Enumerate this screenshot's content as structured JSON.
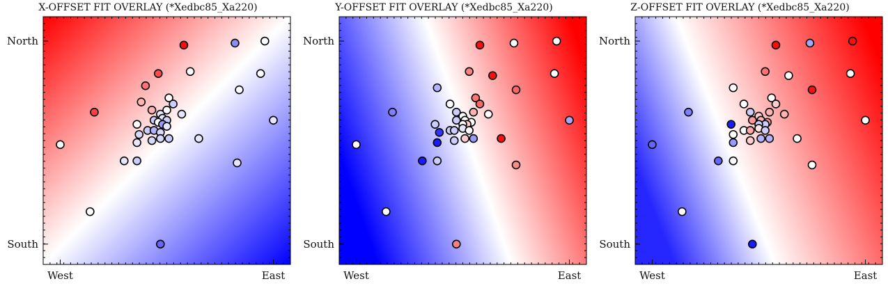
{
  "chart_data": [
    {
      "type": "scatter",
      "title": "X-OFFSET FIT OVERLAY (*Xedbc85_Xa220)",
      "xticks": [
        "West",
        "East"
      ],
      "yticks": [
        "North",
        "South"
      ],
      "xlim": [
        -0.08,
        1.08
      ],
      "ylim": [
        -0.1,
        1.12
      ],
      "background_gradient": {
        "hot_direction": "north-west",
        "cold_direction": "south-east",
        "neutral_line_slope": 0.7
      },
      "colors": {
        "positive": "#ff0000",
        "neutral": "#ffffff",
        "negative": "#0000ff"
      },
      "points": [
        {
          "x": 0.58,
          "y": 0.98,
          "v": 0.95
        },
        {
          "x": 0.82,
          "y": 0.99,
          "v": -0.45
        },
        {
          "x": 0.96,
          "y": 1.0,
          "v": 0.0
        },
        {
          "x": 0.61,
          "y": 0.85,
          "v": 0.0
        },
        {
          "x": 0.94,
          "y": 0.84,
          "v": 0.0
        },
        {
          "x": 0.46,
          "y": 0.84,
          "v": 0.7
        },
        {
          "x": 0.4,
          "y": 0.78,
          "v": 0.55
        },
        {
          "x": 0.84,
          "y": 0.76,
          "v": 0.0
        },
        {
          "x": 0.16,
          "y": 0.65,
          "v": 0.75
        },
        {
          "x": 0.51,
          "y": 0.72,
          "v": 0.0
        },
        {
          "x": 0.38,
          "y": 0.7,
          "v": 0.3
        },
        {
          "x": 0.53,
          "y": 0.69,
          "v": -0.2
        },
        {
          "x": 0.43,
          "y": 0.66,
          "v": 0.3
        },
        {
          "x": 0.47,
          "y": 0.64,
          "v": -0.1
        },
        {
          "x": 0.5,
          "y": 0.66,
          "v": 0.0
        },
        {
          "x": 0.57,
          "y": 0.64,
          "v": -0.1
        },
        {
          "x": 0.44,
          "y": 0.61,
          "v": -0.2
        },
        {
          "x": 0.48,
          "y": 0.62,
          "v": -0.1
        },
        {
          "x": 0.5,
          "y": 0.61,
          "v": -0.2
        },
        {
          "x": 0.46,
          "y": 0.6,
          "v": 0.0
        },
        {
          "x": 0.36,
          "y": 0.59,
          "v": 0.0
        },
        {
          "x": 0.48,
          "y": 0.59,
          "v": -0.4
        },
        {
          "x": 0.41,
          "y": 0.56,
          "v": -0.2
        },
        {
          "x": 0.44,
          "y": 0.56,
          "v": -0.3
        },
        {
          "x": 0.47,
          "y": 0.55,
          "v": -0.15
        },
        {
          "x": 0.37,
          "y": 0.54,
          "v": -0.15
        },
        {
          "x": 0.5,
          "y": 0.58,
          "v": -0.1
        },
        {
          "x": 0.43,
          "y": 0.51,
          "v": -0.15
        },
        {
          "x": 0.47,
          "y": 0.52,
          "v": -0.15
        },
        {
          "x": 0.51,
          "y": 0.52,
          "v": -0.2
        },
        {
          "x": 0.36,
          "y": 0.5,
          "v": -0.1
        },
        {
          "x": 0.65,
          "y": 0.52,
          "v": -0.1
        },
        {
          "x": 0.0,
          "y": 0.49,
          "v": 0.0
        },
        {
          "x": 0.3,
          "y": 0.41,
          "v": -0.1
        },
        {
          "x": 0.36,
          "y": 0.41,
          "v": -0.2
        },
        {
          "x": 0.83,
          "y": 0.4,
          "v": -0.1
        },
        {
          "x": 0.14,
          "y": 0.16,
          "v": 0.0
        },
        {
          "x": 1.0,
          "y": 0.61,
          "v": -0.1
        },
        {
          "x": 0.47,
          "y": 0.0,
          "v": -0.6
        }
      ]
    },
    {
      "type": "scatter",
      "title": "Y-OFFSET FIT OVERLAY (*Xedbc85_Xa220)",
      "xticks": [
        "West",
        "East"
      ],
      "yticks": [
        "North",
        "South"
      ],
      "xlim": [
        -0.08,
        1.08
      ],
      "ylim": [
        -0.1,
        1.12
      ],
      "background_gradient": {
        "hot_direction": "north-east and south-east",
        "cold_direction": "west",
        "neutral_line_slope": -0.6
      },
      "colors": {
        "positive": "#ff0000",
        "neutral": "#ffffff",
        "negative": "#0000ff"
      },
      "points": [
        {
          "x": 0.58,
          "y": 0.98,
          "v": 0.95
        },
        {
          "x": 0.74,
          "y": 0.99,
          "v": 0.0
        },
        {
          "x": 0.94,
          "y": 1.0,
          "v": 0.0
        },
        {
          "x": 0.53,
          "y": 0.85,
          "v": 0.5
        },
        {
          "x": 0.64,
          "y": 0.83,
          "v": 0.95
        },
        {
          "x": 0.93,
          "y": 0.84,
          "v": 0.0
        },
        {
          "x": 0.38,
          "y": 0.77,
          "v": -0.3
        },
        {
          "x": 0.75,
          "y": 0.76,
          "v": 0.6
        },
        {
          "x": 0.17,
          "y": 0.65,
          "v": -0.5
        },
        {
          "x": 0.44,
          "y": 0.69,
          "v": 0.0
        },
        {
          "x": 0.56,
          "y": 0.72,
          "v": 0.55
        },
        {
          "x": 0.58,
          "y": 0.69,
          "v": 0.6
        },
        {
          "x": 0.47,
          "y": 0.65,
          "v": -0.2
        },
        {
          "x": 0.5,
          "y": 0.63,
          "v": 0.0
        },
        {
          "x": 0.55,
          "y": 0.65,
          "v": 0.3
        },
        {
          "x": 0.62,
          "y": 0.64,
          "v": 0.0
        },
        {
          "x": 0.47,
          "y": 0.61,
          "v": -0.2
        },
        {
          "x": 0.51,
          "y": 0.61,
          "v": 0.0
        },
        {
          "x": 0.54,
          "y": 0.6,
          "v": 0.0
        },
        {
          "x": 0.52,
          "y": 0.59,
          "v": 0.2
        },
        {
          "x": 0.37,
          "y": 0.59,
          "v": -0.2
        },
        {
          "x": 0.5,
          "y": 0.59,
          "v": 0.0
        },
        {
          "x": 0.44,
          "y": 0.56,
          "v": -0.2
        },
        {
          "x": 0.46,
          "y": 0.56,
          "v": -0.2
        },
        {
          "x": 0.5,
          "y": 0.57,
          "v": -0.1
        },
        {
          "x": 0.39,
          "y": 0.55,
          "v": -0.8
        },
        {
          "x": 0.53,
          "y": 0.56,
          "v": 0.0
        },
        {
          "x": 0.46,
          "y": 0.51,
          "v": -0.2
        },
        {
          "x": 0.51,
          "y": 0.52,
          "v": 0.2
        },
        {
          "x": 0.55,
          "y": 0.52,
          "v": -0.4
        },
        {
          "x": 0.38,
          "y": 0.5,
          "v": -0.9
        },
        {
          "x": 0.68,
          "y": 0.52,
          "v": 0.95
        },
        {
          "x": 0.0,
          "y": 0.49,
          "v": 0.0
        },
        {
          "x": 0.31,
          "y": 0.41,
          "v": -0.9
        },
        {
          "x": 0.38,
          "y": 0.41,
          "v": -0.2
        },
        {
          "x": 0.75,
          "y": 0.39,
          "v": 0.45
        },
        {
          "x": 0.14,
          "y": 0.16,
          "v": 0.0
        },
        {
          "x": 1.0,
          "y": 0.61,
          "v": -0.35
        },
        {
          "x": 0.47,
          "y": 0.0,
          "v": 0.5
        }
      ]
    },
    {
      "type": "scatter",
      "title": "Z-OFFSET FIT OVERLAY (*Xedbc85_Xa220)",
      "xticks": [
        "West",
        "East"
      ],
      "yticks": [
        "North",
        "South"
      ],
      "xlim": [
        -0.08,
        1.08
      ],
      "ylim": [
        -0.1,
        1.12
      ],
      "background_gradient": {
        "hot_direction": "north-east",
        "cold_direction": "west and south-east",
        "neutral_line_slope": -0.2
      },
      "colors": {
        "positive": "#ff0000",
        "neutral": "#ffffff",
        "negative": "#0000ff"
      },
      "points": [
        {
          "x": 0.58,
          "y": 0.98,
          "v": 0.95
        },
        {
          "x": 0.74,
          "y": 0.99,
          "v": -0.35
        },
        {
          "x": 0.94,
          "y": 1.0,
          "v": 0.95
        },
        {
          "x": 0.53,
          "y": 0.85,
          "v": 0.55
        },
        {
          "x": 0.64,
          "y": 0.83,
          "v": 0.0
        },
        {
          "x": 0.93,
          "y": 0.84,
          "v": 0.0
        },
        {
          "x": 0.38,
          "y": 0.77,
          "v": 0.0
        },
        {
          "x": 0.75,
          "y": 0.76,
          "v": 0.95
        },
        {
          "x": 0.17,
          "y": 0.65,
          "v": -0.5
        },
        {
          "x": 0.43,
          "y": 0.69,
          "v": 0.0
        },
        {
          "x": 0.56,
          "y": 0.72,
          "v": 0.0
        },
        {
          "x": 0.58,
          "y": 0.69,
          "v": 0.2
        },
        {
          "x": 0.46,
          "y": 0.65,
          "v": -0.2
        },
        {
          "x": 0.5,
          "y": 0.63,
          "v": 0.2
        },
        {
          "x": 0.55,
          "y": 0.65,
          "v": 0.3
        },
        {
          "x": 0.62,
          "y": 0.64,
          "v": 0.3
        },
        {
          "x": 0.47,
          "y": 0.61,
          "v": 0.4
        },
        {
          "x": 0.51,
          "y": 0.61,
          "v": 0.3
        },
        {
          "x": 0.54,
          "y": 0.6,
          "v": 0.4
        },
        {
          "x": 0.53,
          "y": 0.59,
          "v": -0.2
        },
        {
          "x": 0.37,
          "y": 0.59,
          "v": -0.9
        },
        {
          "x": 0.5,
          "y": 0.59,
          "v": -0.2
        },
        {
          "x": 0.43,
          "y": 0.56,
          "v": 0.0
        },
        {
          "x": 0.46,
          "y": 0.56,
          "v": 0.35
        },
        {
          "x": 0.5,
          "y": 0.57,
          "v": 0.1
        },
        {
          "x": 0.38,
          "y": 0.54,
          "v": 0.0
        },
        {
          "x": 0.53,
          "y": 0.56,
          "v": -0.2
        },
        {
          "x": 0.46,
          "y": 0.51,
          "v": 0.2
        },
        {
          "x": 0.51,
          "y": 0.52,
          "v": -0.3
        },
        {
          "x": 0.55,
          "y": 0.52,
          "v": -0.3
        },
        {
          "x": 0.38,
          "y": 0.5,
          "v": -0.4
        },
        {
          "x": 0.68,
          "y": 0.52,
          "v": 0.0
        },
        {
          "x": 0.0,
          "y": 0.49,
          "v": -0.6
        },
        {
          "x": 0.31,
          "y": 0.41,
          "v": -0.6
        },
        {
          "x": 0.38,
          "y": 0.41,
          "v": 0.0
        },
        {
          "x": 0.75,
          "y": 0.39,
          "v": 0.0
        },
        {
          "x": 0.14,
          "y": 0.16,
          "v": 0.0
        },
        {
          "x": 1.0,
          "y": 0.61,
          "v": 0.0
        },
        {
          "x": 0.47,
          "y": 0.0,
          "v": -0.9
        }
      ]
    }
  ]
}
